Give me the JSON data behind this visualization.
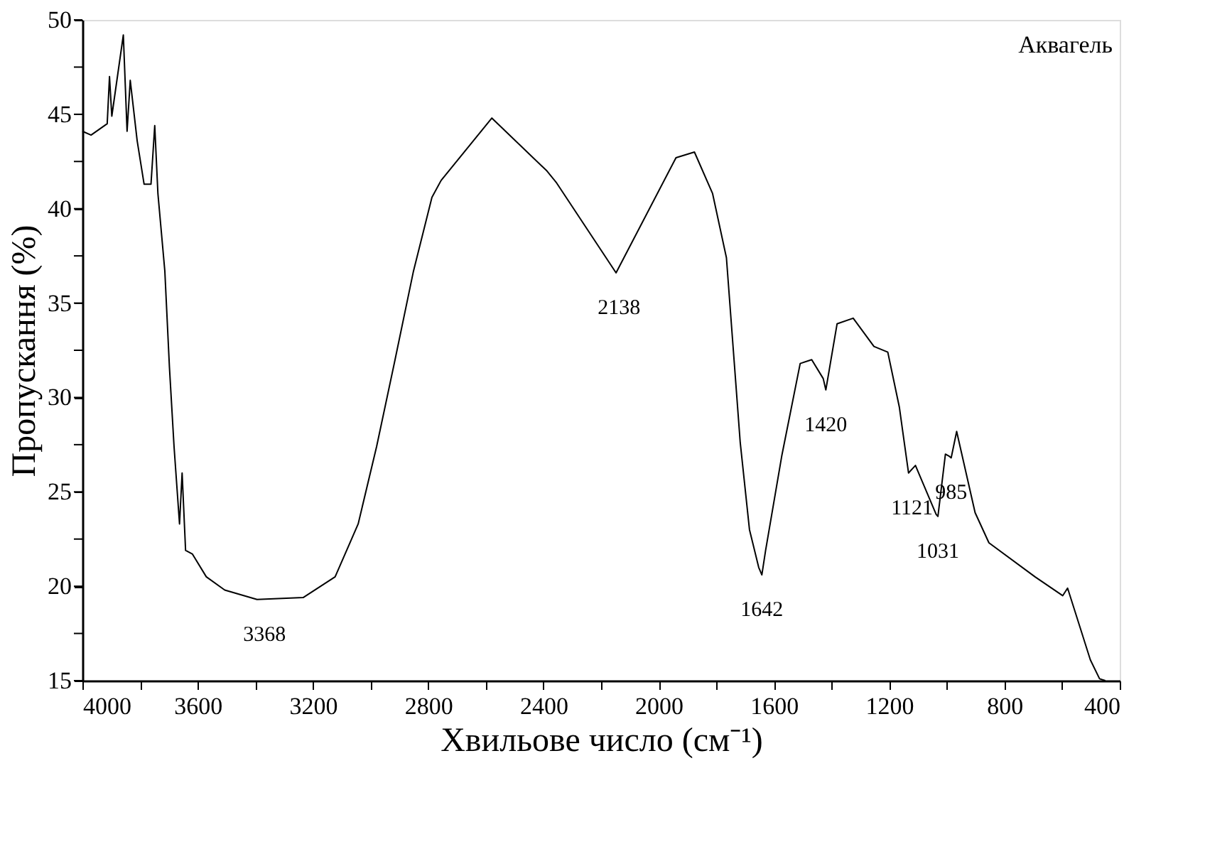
{
  "chart_data": {
    "type": "line",
    "xlabel": "Хвильове число (см⁻¹)",
    "ylabel": "Пропускання (%)",
    "x": [
      4000,
      3970,
      3914,
      3906,
      3898,
      3858,
      3845,
      3834,
      3810,
      3786,
      3762,
      3749,
      3738,
      3714,
      3698,
      3682,
      3663,
      3654,
      3642,
      3618,
      3570,
      3506,
      3394,
      3234,
      3123,
      3043,
      2979,
      2915,
      2851,
      2787,
      2755,
      2579,
      2388,
      2356,
      2148,
      1940,
      1876,
      1813,
      1765,
      1717,
      1685,
      1653,
      1642,
      1629,
      1573,
      1509,
      1469,
      1429,
      1420,
      1381,
      1325,
      1253,
      1205,
      1165,
      1133,
      1121,
      1109,
      1037,
      1031,
      1005,
      993,
      985,
      966,
      902,
      854,
      694,
      598,
      581,
      502,
      470,
      450
    ],
    "series": [
      {
        "color": "#000000",
        "values": [
          44.1,
          43.9,
          44.5,
          47.0,
          44.9,
          49.2,
          44.1,
          46.8,
          43.6,
          41.3,
          41.3,
          44.4,
          40.8,
          36.7,
          31.6,
          27.4,
          23.3,
          26.0,
          21.9,
          21.7,
          20.5,
          19.8,
          19.3,
          19.4,
          20.5,
          23.3,
          27.4,
          32.0,
          36.7,
          40.6,
          41.5,
          44.8,
          42.0,
          41.4,
          36.6,
          42.7,
          43.0,
          40.8,
          37.4,
          27.6,
          23.0,
          21.0,
          20.6,
          21.9,
          26.9,
          31.8,
          32.0,
          31.0,
          30.4,
          33.9,
          34.2,
          32.7,
          32.4,
          29.5,
          26.0,
          26.2,
          26.4,
          23.8,
          23.7,
          27.0,
          26.9,
          26.8,
          28.2,
          23.9,
          22.3,
          20.5,
          19.5,
          19.9,
          16.1,
          15.1,
          15.0
        ]
      }
    ],
    "xlim": [
      4000,
      400
    ],
    "xticks": [
      4000,
      {
        "value": 3800,
        "label": null
      },
      3600,
      {
        "value": 3400,
        "label": null
      },
      3200,
      {
        "value": 3000,
        "label": null
      },
      2800,
      {
        "value": 2600,
        "label": null
      },
      2400,
      {
        "value": 2200,
        "label": null
      },
      2000,
      {
        "value": 1800,
        "label": null
      },
      1600,
      {
        "value": 1400,
        "label": null
      },
      1200,
      {
        "value": 1000,
        "label": null
      },
      800,
      {
        "value": 600,
        "label": null
      },
      400
    ],
    "ylim": [
      15,
      50
    ],
    "yticks": [
      15,
      {
        "value": 17.5,
        "label": null
      },
      20,
      {
        "value": 22.5,
        "label": null
      },
      25,
      {
        "value": 27.5,
        "label": null
      },
      30,
      {
        "value": 32.5,
        "label": null
      },
      35,
      {
        "value": 37.5,
        "label": null
      },
      40,
      {
        "value": 42.5,
        "label": null
      },
      45,
      {
        "value": 47.5,
        "label": null
      },
      50
    ],
    "grid": false,
    "marker": "none",
    "line_style": "solid",
    "annotations": [
      "Аквагель",
      {
        "text": "3368",
        "x": 3368,
        "y": 19.3
      },
      {
        "text": "2138",
        "x": 2138,
        "y": 36.6
      },
      {
        "text": "1642",
        "x": 1642,
        "y": 20.6
      },
      {
        "text": "1420",
        "x": 1420,
        "y": 30.4
      },
      {
        "text": "1121",
        "x": 1121,
        "y": 26.0
      },
      {
        "text": "1031",
        "x": 1031,
        "y": 23.7
      },
      {
        "text": "985",
        "x": 985,
        "y": 26.8
      }
    ]
  }
}
